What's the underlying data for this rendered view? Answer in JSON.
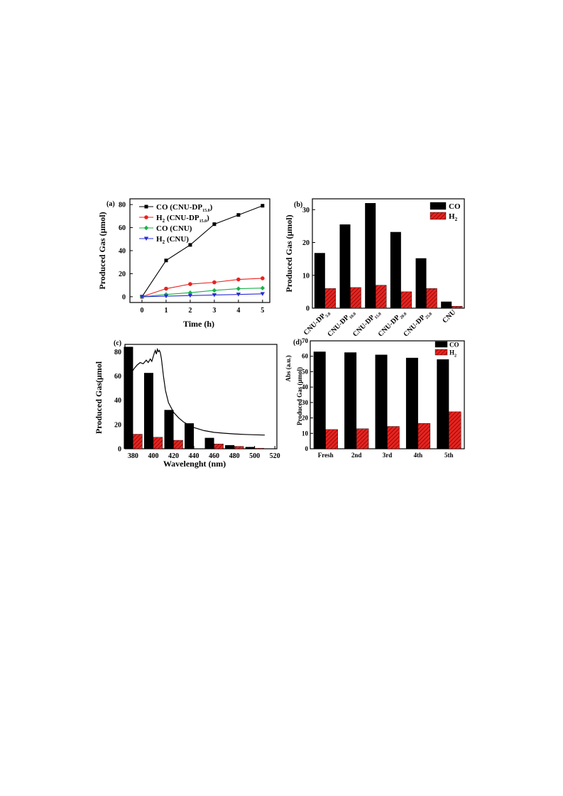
{
  "chart_data": [
    {
      "panel": "(a)",
      "type": "line",
      "xlabel": "Time (h)",
      "ylabel": "Produced Gas (μmol)",
      "xlim": [
        -0.5,
        5.3
      ],
      "ylim": [
        -5,
        85
      ],
      "x_ticks": [
        "0",
        "1",
        "2",
        "3",
        "4",
        "5"
      ],
      "y_ticks": [
        "0",
        "20",
        "40",
        "60",
        "80"
      ],
      "x": [
        0,
        1,
        2,
        3,
        4,
        5
      ],
      "legend_position": "top-left",
      "series": [
        {
          "name": "CO (CNU-DP",
          "sub": "15.0",
          "tail": ")",
          "color": "#000000",
          "marker": "square",
          "values": [
            0,
            31.5,
            45,
            63,
            71,
            79
          ]
        },
        {
          "name": "H",
          "sub1": "2",
          "name2": " (CNU-DP",
          "sub": "15.0",
          "tail": ")",
          "color": "#e8231f",
          "marker": "circle",
          "values": [
            0,
            7,
            11,
            12.5,
            15,
            16
          ]
        },
        {
          "name": "CO (CNU)",
          "color": "#18b24a",
          "marker": "diamond",
          "values": [
            0,
            2,
            3.5,
            5.5,
            7,
            7.5
          ]
        },
        {
          "name": "H",
          "sub1": "2",
          "name2": " (CNU)",
          "color": "#2a2cd8",
          "marker": "triangle-down",
          "values": [
            0,
            0.5,
            1,
            1.5,
            2,
            2.5
          ]
        }
      ]
    },
    {
      "panel": "(b)",
      "type": "bar",
      "ylabel": "Produced Gas (μmol)",
      "ylim": [
        0,
        32
      ],
      "y_ticks": [
        "0",
        "10",
        "20",
        "30"
      ],
      "categories": [
        {
          "main": "CNU-DP",
          "sub": "5.0"
        },
        {
          "main": "CNU-DP",
          "sub": "10.0"
        },
        {
          "main": "CNU-DP",
          "sub": "15.0"
        },
        {
          "main": "CNU-DP",
          "sub": "20.0"
        },
        {
          "main": "CNU-DP",
          "sub": "25.0"
        },
        {
          "main": "CNU",
          "sub": ""
        }
      ],
      "legend_position": "top-right",
      "series": [
        {
          "name": "CO",
          "color": "#000000",
          "values": [
            16.8,
            25.5,
            32,
            23.2,
            15.2,
            2
          ]
        },
        {
          "name": "H",
          "sub": "2",
          "color": "#e8231f",
          "values": [
            6,
            6.3,
            7,
            5,
            6,
            0.6
          ]
        }
      ]
    },
    {
      "panel": "(c)",
      "type": "bar",
      "xlabel": "Wavelenght (nm)",
      "ylabel": "Produced Gas(μmol",
      "xlim": [
        372,
        522
      ],
      "ylim": [
        0,
        86
      ],
      "x_ticks": [
        "380",
        "400",
        "420",
        "440",
        "460",
        "480",
        "500",
        "520"
      ],
      "y_ticks": [
        "0",
        "20",
        "40",
        "60",
        "80"
      ],
      "series": [
        {
          "name": "CO",
          "color": "#000000",
          "x": [
            380,
            400,
            420,
            440,
            460,
            480,
            500
          ],
          "values": [
            84,
            62.5,
            32,
            21,
            9,
            3,
            1.5
          ]
        },
        {
          "name": "H2",
          "color": "#e8231f",
          "x": [
            380,
            400,
            420,
            440,
            460,
            480,
            500
          ],
          "values": [
            12,
            9.5,
            7,
            0,
            4,
            2,
            0.5
          ]
        }
      ],
      "absorption_curve": {
        "x": [
          375,
          378,
          381,
          384,
          387,
          390,
          393,
          395,
          397,
          398.5,
          400,
          401,
          402,
          403,
          404,
          405,
          406,
          407,
          408,
          410,
          412,
          415,
          420,
          425,
          430,
          440,
          450,
          460,
          470,
          480,
          490,
          500,
          510
        ],
        "values": [
          58,
          62,
          66,
          69,
          71,
          70,
          73,
          71,
          74,
          72,
          76,
          79,
          81,
          78,
          82,
          80,
          81,
          79,
          74,
          60,
          48,
          38,
          30,
          25.5,
          22,
          17.5,
          15,
          13.5,
          12.8,
          12.2,
          11.8,
          11.5,
          11.3
        ]
      }
    },
    {
      "panel": "(d)",
      "type": "bar",
      "ylabel": "Produced Gas (μmol)",
      "ylabel2": "Abs (a.u.)",
      "ylim": [
        0,
        70
      ],
      "y_ticks": [
        "0",
        "10",
        "20",
        "30",
        "40",
        "50",
        "60",
        "70"
      ],
      "categories": [
        "Fresh",
        "2nd",
        "3rd",
        "4th",
        "5th"
      ],
      "legend_position": "top-right",
      "series": [
        {
          "name": "CO",
          "color": "#000000",
          "values": [
            63,
            62.5,
            61,
            59,
            58
          ]
        },
        {
          "name": "H",
          "sub": "2",
          "color": "#e8231f",
          "values": [
            12.5,
            13,
            14.5,
            16.5,
            24
          ]
        }
      ]
    }
  ]
}
